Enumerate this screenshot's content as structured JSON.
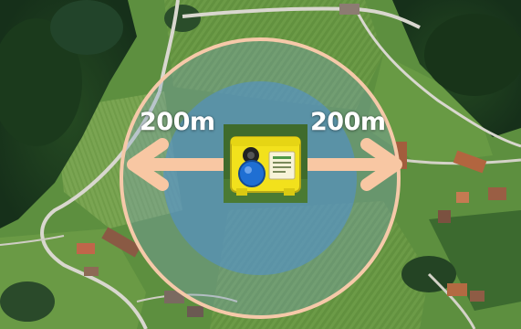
{
  "coverage": {
    "left_label": "200m",
    "right_label": "200m"
  },
  "colors": {
    "outer_ring": "#f6c9a9",
    "inner_disc": "#4f8fd6",
    "arrow": "#f8c7a3",
    "device_body": "#f2e11c",
    "device_button": "#1f6fd3",
    "grass": "#5d8f3f",
    "forest": "#1e3d1e",
    "road": "#d9d7cf"
  },
  "icons": {
    "device": "gateway-device-icon",
    "arrow_left": "arrow-left-icon",
    "arrow_right": "arrow-right-icon"
  }
}
